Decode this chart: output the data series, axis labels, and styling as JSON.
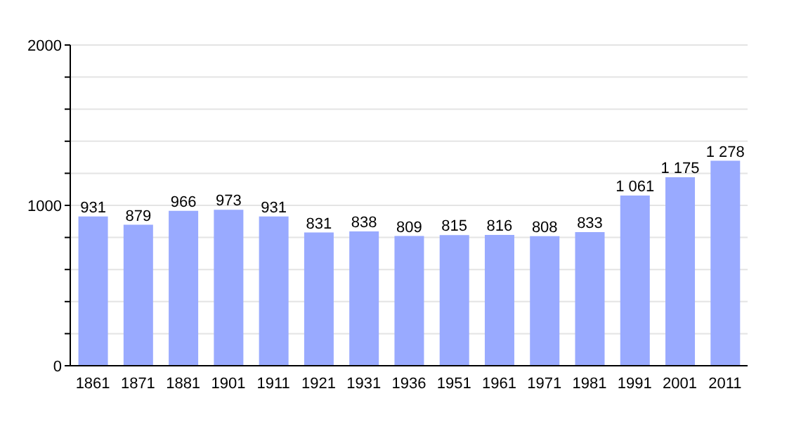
{
  "chart_data": {
    "type": "bar",
    "categories": [
      "1861",
      "1871",
      "1881",
      "1901",
      "1911",
      "1921",
      "1931",
      "1936",
      "1951",
      "1961",
      "1971",
      "1981",
      "1991",
      "2001",
      "2011"
    ],
    "values": [
      931,
      879,
      966,
      973,
      931,
      831,
      838,
      809,
      815,
      816,
      808,
      833,
      1061,
      1175,
      1278
    ],
    "value_labels": [
      "931",
      "879",
      "966",
      "973",
      "931",
      "831",
      "838",
      "809",
      "815",
      "816",
      "808",
      "833",
      "1 061",
      "1 175",
      "1 278"
    ],
    "color": "#99aaff",
    "ylim": [
      0,
      2000
    ],
    "yticks": [
      0,
      {
        "value": 200,
        "label": null
      },
      {
        "value": 400,
        "label": null
      },
      {
        "value": 600,
        "label": null
      },
      {
        "value": 800,
        "label": null
      },
      1000,
      {
        "value": 1200,
        "label": null
      },
      {
        "value": 1400,
        "label": null
      },
      {
        "value": 1600,
        "label": null
      },
      {
        "value": 1800,
        "label": null
      },
      2000
    ],
    "grid": "y"
  }
}
